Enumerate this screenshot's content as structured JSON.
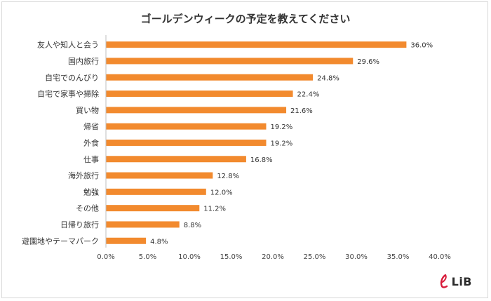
{
  "chart_data": {
    "type": "bar",
    "orientation": "horizontal",
    "title": "ゴールデンウィークの予定を教えてください",
    "categories": [
      "友人や知人と会う",
      "国内旅行",
      "自宅でのんびり",
      "自宅で家事や掃除",
      "買い物",
      "帰省",
      "外食",
      "仕事",
      "海外旅行",
      "勉強",
      "その他",
      "日帰り旅行",
      "遊園地やテーマパーク"
    ],
    "values": [
      36.0,
      29.6,
      24.8,
      22.4,
      21.6,
      19.2,
      19.2,
      16.8,
      12.8,
      12.0,
      11.2,
      8.8,
      4.8
    ],
    "value_labels": [
      "36.0%",
      "29.6%",
      "24.8%",
      "22.4%",
      "21.6%",
      "19.2%",
      "19.2%",
      "16.8%",
      "12.8%",
      "12.0%",
      "11.2%",
      "8.8%",
      "4.8%"
    ],
    "xlim": [
      0,
      40
    ],
    "ticks": [
      0,
      5,
      10,
      15,
      20,
      25,
      30,
      35,
      40
    ],
    "tick_labels": [
      "0.0%",
      "5.0%",
      "10.0%",
      "15.0%",
      "20.0%",
      "25.0%",
      "30.0%",
      "35.0%",
      "40.0%"
    ],
    "bar_color": "#f28a2e",
    "grid": false,
    "legend": "none"
  },
  "logo": {
    "text": "LiB",
    "accent_color": "#d81b3a"
  }
}
